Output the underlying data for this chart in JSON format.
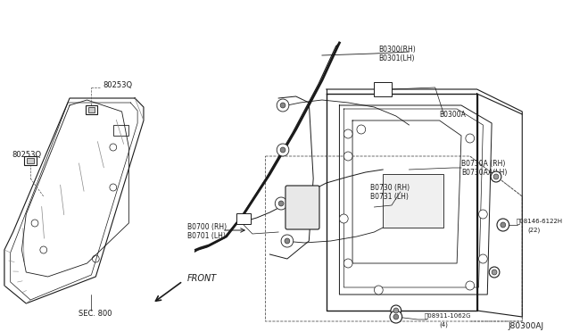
{
  "background_color": "#ffffff",
  "line_color": "#1a1a1a",
  "text_color": "#1a1a1a",
  "diagram_id": "J80300AJ",
  "figsize": [
    6.4,
    3.72
  ],
  "dpi": 100,
  "labels": {
    "part1_upper": "80253Q",
    "part1_lower": "80253Q",
    "sec800": "SEC. 800",
    "b0300rh": "B0300(RH)",
    "b0301lh": "B0301(LH)",
    "b0300a": "B0300A",
    "b0730a_rh": "B0730A (RH)",
    "b0730aa_lh": "B0730AA(LH)",
    "b0730_rh": "B0730 (RH)",
    "b0731_lh": "B0731 (LH)",
    "b0700_rh": "B0700 (RH)",
    "b0701_lh": "B0701 (LH)",
    "bolt1": "08146-6122H",
    "bolt1b": "(22)",
    "bolt2": "08911-1062G",
    "bolt2b": "(4)",
    "front": "FRONT"
  }
}
